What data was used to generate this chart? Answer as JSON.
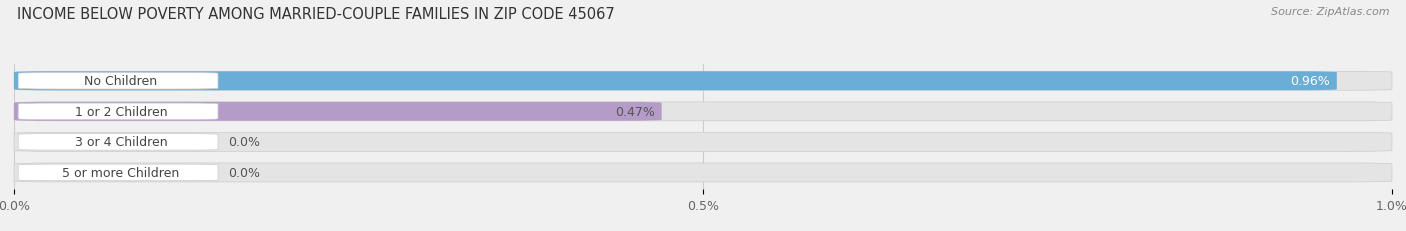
{
  "title": "INCOME BELOW POVERTY AMONG MARRIED-COUPLE FAMILIES IN ZIP CODE 45067",
  "source": "Source: ZipAtlas.com",
  "categories": [
    "No Children",
    "1 or 2 Children",
    "3 or 4 Children",
    "5 or more Children"
  ],
  "values": [
    0.96,
    0.47,
    0.0,
    0.0
  ],
  "bar_colors": [
    "#6aaed6",
    "#b59cc8",
    "#4db6ac",
    "#9fa8da"
  ],
  "xlim_max": 1.0,
  "xticks": [
    0.0,
    0.5,
    1.0
  ],
  "xtick_labels": [
    "0.0%",
    "0.5%",
    "1.0%"
  ],
  "background_color": "#f0f0f0",
  "bar_bg_color": "#e4e4e4",
  "label_bg_color": "#ffffff",
  "title_fontsize": 10.5,
  "tick_fontsize": 9,
  "label_fontsize": 9,
  "value_fontsize": 9,
  "bar_height": 0.62,
  "bar_gap": 0.38
}
